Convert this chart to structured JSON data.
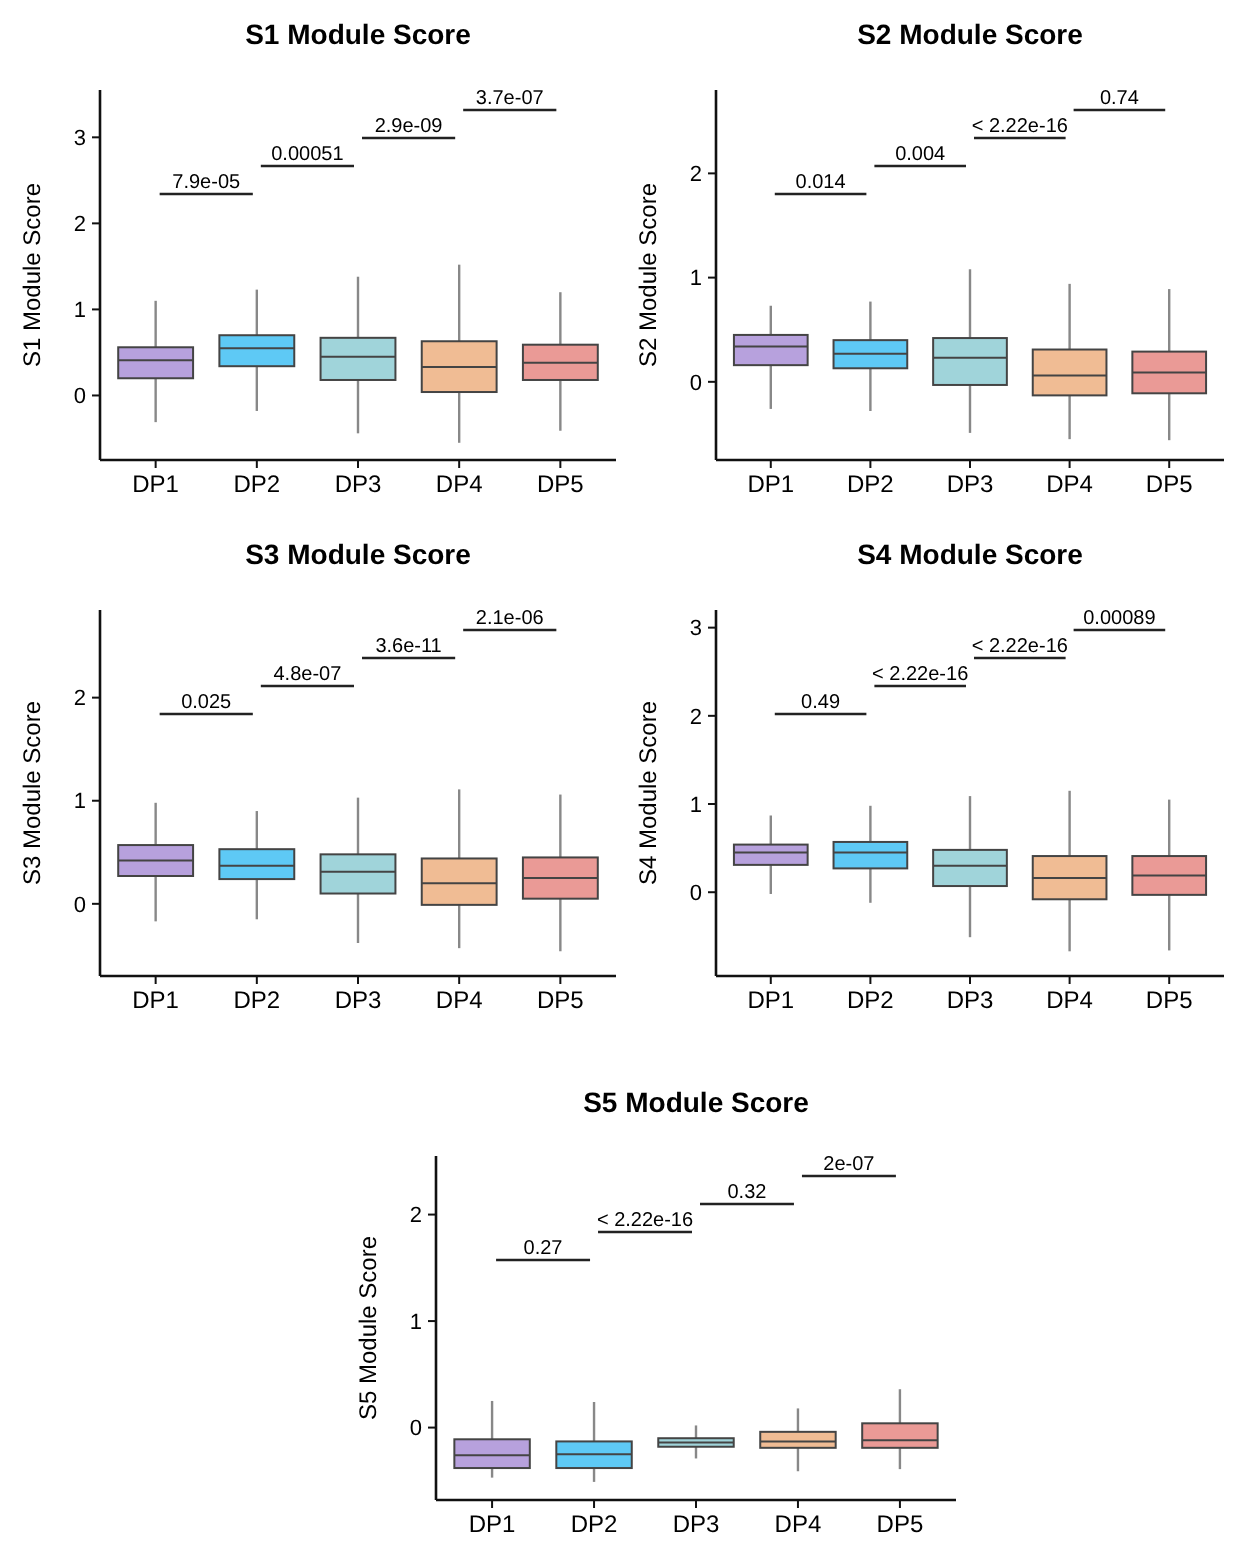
{
  "chart_data": [
    {
      "type": "box",
      "title": "S1 Module Score",
      "ylabel": "S1 Module Score",
      "categories": [
        "DP1",
        "DP2",
        "DP3",
        "DP4",
        "DP5"
      ],
      "colors": [
        "#b7a1dd",
        "#5ec9f5",
        "#a0d4da",
        "#f0bc94",
        "#ea9a96"
      ],
      "ylim": [
        -0.75,
        3.55
      ],
      "yticks": [
        0,
        1,
        2,
        3
      ],
      "boxes": [
        {
          "low": -0.31,
          "q1": 0.2,
          "median": 0.41,
          "q3": 0.56,
          "high": 1.1
        },
        {
          "low": -0.18,
          "q1": 0.34,
          "median": 0.55,
          "q3": 0.7,
          "high": 1.23
        },
        {
          "low": -0.44,
          "q1": 0.18,
          "median": 0.45,
          "q3": 0.67,
          "high": 1.38
        },
        {
          "low": -0.55,
          "q1": 0.04,
          "median": 0.33,
          "q3": 0.63,
          "high": 1.52
        },
        {
          "low": -0.41,
          "q1": 0.18,
          "median": 0.38,
          "q3": 0.59,
          "high": 1.2
        }
      ],
      "annotations": [
        "7.9e-05",
        "0.00051",
        "2.9e-09",
        "3.7e-07"
      ]
    },
    {
      "type": "box",
      "title": "S2 Module Score",
      "ylabel": "S2 Module Score",
      "categories": [
        "DP1",
        "DP2",
        "DP3",
        "DP4",
        "DP5"
      ],
      "colors": [
        "#b7a1dd",
        "#5ec9f5",
        "#a0d4da",
        "#f0bc94",
        "#ea9a96"
      ],
      "ylim": [
        -0.75,
        2.8
      ],
      "yticks": [
        0,
        1,
        2
      ],
      "boxes": [
        {
          "low": -0.26,
          "q1": 0.16,
          "median": 0.34,
          "q3": 0.45,
          "high": 0.73
        },
        {
          "low": -0.28,
          "q1": 0.13,
          "median": 0.27,
          "q3": 0.4,
          "high": 0.77
        },
        {
          "low": -0.49,
          "q1": -0.03,
          "median": 0.23,
          "q3": 0.42,
          "high": 1.08
        },
        {
          "low": -0.55,
          "q1": -0.13,
          "median": 0.06,
          "q3": 0.31,
          "high": 0.94
        },
        {
          "low": -0.56,
          "q1": -0.11,
          "median": 0.09,
          "q3": 0.29,
          "high": 0.89
        }
      ],
      "annotations": [
        "0.014",
        "0.004",
        "< 2.22e-16",
        "0.74"
      ]
    },
    {
      "type": "box",
      "title": "S3 Module Score",
      "ylabel": "S3 Module Score",
      "categories": [
        "DP1",
        "DP2",
        "DP3",
        "DP4",
        "DP5"
      ],
      "colors": [
        "#b7a1dd",
        "#5ec9f5",
        "#a0d4da",
        "#f0bc94",
        "#ea9a96"
      ],
      "ylim": [
        -0.7,
        2.85
      ],
      "yticks": [
        0,
        1,
        2
      ],
      "boxes": [
        {
          "low": -0.17,
          "q1": 0.27,
          "median": 0.42,
          "q3": 0.57,
          "high": 0.98
        },
        {
          "low": -0.15,
          "q1": 0.24,
          "median": 0.37,
          "q3": 0.53,
          "high": 0.9
        },
        {
          "low": -0.38,
          "q1": 0.1,
          "median": 0.31,
          "q3": 0.48,
          "high": 1.03
        },
        {
          "low": -0.43,
          "q1": -0.01,
          "median": 0.2,
          "q3": 0.44,
          "high": 1.11
        },
        {
          "low": -0.46,
          "q1": 0.05,
          "median": 0.25,
          "q3": 0.45,
          "high": 1.06
        }
      ],
      "annotations": [
        "0.025",
        "4.8e-07",
        "3.6e-11",
        "2.1e-06"
      ]
    },
    {
      "type": "box",
      "title": "S4 Module Score",
      "ylabel": "S4 Module Score",
      "categories": [
        "DP1",
        "DP2",
        "DP3",
        "DP4",
        "DP5"
      ],
      "colors": [
        "#b7a1dd",
        "#5ec9f5",
        "#a0d4da",
        "#f0bc94",
        "#ea9a96"
      ],
      "ylim": [
        -0.95,
        3.2
      ],
      "yticks": [
        0,
        1,
        2,
        3
      ],
      "boxes": [
        {
          "low": -0.02,
          "q1": 0.31,
          "median": 0.45,
          "q3": 0.54,
          "high": 0.87
        },
        {
          "low": -0.12,
          "q1": 0.27,
          "median": 0.45,
          "q3": 0.57,
          "high": 0.98
        },
        {
          "low": -0.51,
          "q1": 0.07,
          "median": 0.3,
          "q3": 0.48,
          "high": 1.09
        },
        {
          "low": -0.67,
          "q1": -0.08,
          "median": 0.16,
          "q3": 0.41,
          "high": 1.15
        },
        {
          "low": -0.66,
          "q1": -0.03,
          "median": 0.19,
          "q3": 0.41,
          "high": 1.05
        }
      ],
      "annotations": [
        "0.49",
        "< 2.22e-16",
        "< 2.22e-16",
        "0.00089"
      ]
    },
    {
      "type": "box",
      "title": "S5 Module Score",
      "ylabel": "S5 Module Score",
      "categories": [
        "DP1",
        "DP2",
        "DP3",
        "DP4",
        "DP5"
      ],
      "colors": [
        "#b7a1dd",
        "#5ec9f5",
        "#a0d4da",
        "#f0bc94",
        "#ea9a96"
      ],
      "ylim": [
        -0.68,
        2.55
      ],
      "yticks": [
        0,
        1,
        2
      ],
      "boxes": [
        {
          "low": -0.47,
          "q1": -0.38,
          "median": -0.26,
          "q3": -0.11,
          "high": 0.25
        },
        {
          "low": -0.51,
          "q1": -0.38,
          "median": -0.25,
          "q3": -0.13,
          "high": 0.24
        },
        {
          "low": -0.29,
          "q1": -0.18,
          "median": -0.14,
          "q3": -0.1,
          "high": 0.02
        },
        {
          "low": -0.41,
          "q1": -0.19,
          "median": -0.13,
          "q3": -0.04,
          "high": 0.18
        },
        {
          "low": -0.39,
          "q1": -0.19,
          "median": -0.12,
          "q3": 0.04,
          "high": 0.36
        }
      ],
      "annotations": [
        "0.27",
        "< 2.22e-16",
        "0.32",
        "2e-07"
      ]
    }
  ]
}
